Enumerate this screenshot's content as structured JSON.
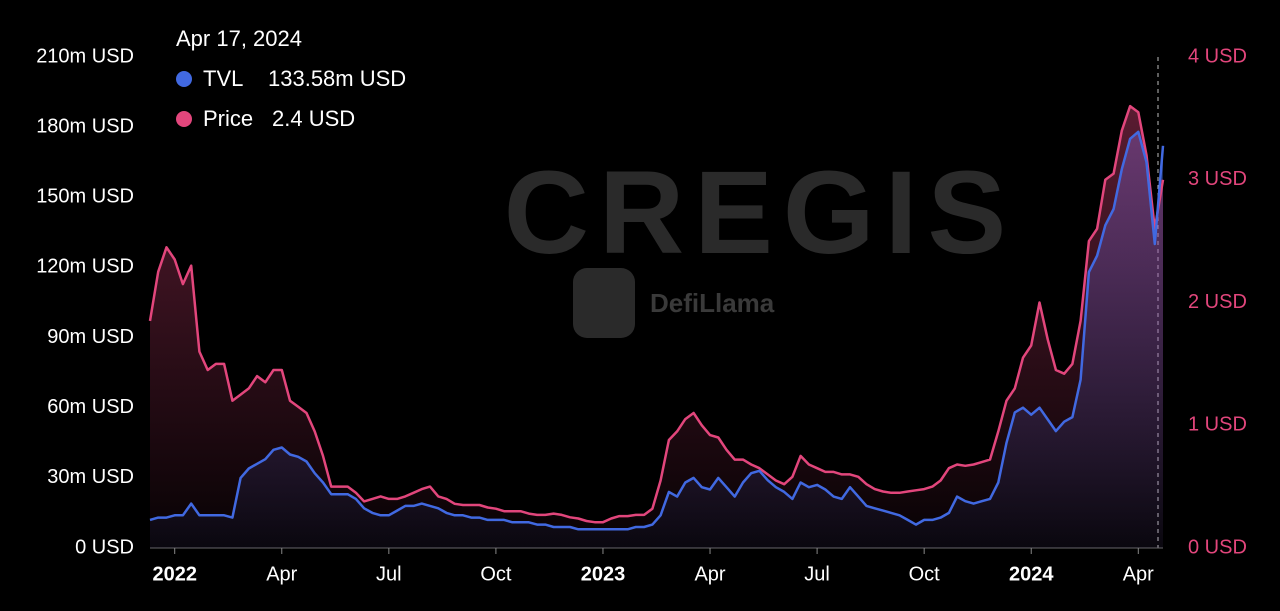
{
  "chart_data": {
    "type": "line",
    "watermarks": [
      "CREGIS",
      "DefiLlama"
    ],
    "tooltip": {
      "date": "Apr 17, 2024",
      "items": [
        {
          "name": "TVL",
          "value": "133.58m USD"
        },
        {
          "name": "Price",
          "value": "2.4 USD"
        }
      ]
    },
    "categories": [
      null,
      null,
      null,
      "2022",
      null,
      null,
      null,
      null,
      null,
      null,
      null,
      null,
      null,
      null,
      null,
      null,
      "Apr",
      null,
      null,
      null,
      null,
      null,
      null,
      null,
      null,
      null,
      null,
      null,
      null,
      "Jul",
      null,
      null,
      null,
      null,
      null,
      null,
      null,
      null,
      null,
      null,
      null,
      null,
      "Oct",
      null,
      null,
      null,
      null,
      null,
      null,
      null,
      null,
      null,
      null,
      null,
      null,
      "2023",
      null,
      null,
      null,
      null,
      null,
      null,
      null,
      null,
      null,
      null,
      null,
      null,
      "Apr",
      null,
      null,
      null,
      null,
      null,
      null,
      null,
      null,
      null,
      null,
      null,
      null,
      "Jul",
      null,
      null,
      null,
      null,
      null,
      null,
      null,
      null,
      null,
      null,
      null,
      null,
      "Oct",
      null,
      null,
      null,
      null,
      null,
      null,
      null,
      null,
      null,
      null,
      null,
      null,
      "2024",
      null,
      null,
      null,
      null,
      null,
      null,
      null,
      null,
      null,
      null,
      null,
      null,
      "Apr",
      null,
      null,
      null
    ],
    "series": [
      {
        "name": "TVL",
        "color": "#4169e1",
        "axis": "y",
        "values": [
          12,
          13,
          13,
          14,
          14,
          19,
          14,
          14,
          14,
          14,
          13,
          30,
          34,
          36,
          38,
          42,
          43,
          40,
          39,
          37,
          32,
          28,
          23,
          23,
          23,
          21,
          17,
          15,
          14,
          14,
          16,
          18,
          18,
          19,
          18,
          17,
          15,
          14,
          14,
          13,
          13,
          12,
          12,
          12,
          11,
          11,
          11,
          10,
          10,
          9,
          9,
          9,
          8,
          8,
          8,
          8,
          8,
          8,
          8,
          9,
          9,
          10,
          14,
          24,
          22,
          28,
          30,
          26,
          25,
          30,
          26,
          22,
          28,
          32,
          33,
          29,
          26,
          24,
          21,
          28,
          26,
          27,
          25,
          22,
          21,
          26,
          22,
          18,
          17,
          16,
          15,
          14,
          12,
          10,
          12,
          12,
          13,
          15,
          22,
          20,
          19,
          20,
          21,
          28,
          45,
          58,
          60,
          57,
          60,
          55,
          50,
          54,
          56,
          72,
          118,
          125,
          138,
          145,
          162,
          175,
          178,
          165,
          130,
          172
        ]
      },
      {
        "name": "Price",
        "color": "#e2467c",
        "axis": "y2",
        "values": [
          1.85,
          2.25,
          2.45,
          2.35,
          2.15,
          2.3,
          1.6,
          1.45,
          1.5,
          1.5,
          1.2,
          1.25,
          1.3,
          1.4,
          1.35,
          1.45,
          1.45,
          1.2,
          1.15,
          1.1,
          0.95,
          0.75,
          0.5,
          0.5,
          0.5,
          0.45,
          0.38,
          0.4,
          0.42,
          0.4,
          0.4,
          0.42,
          0.45,
          0.48,
          0.5,
          0.42,
          0.4,
          0.36,
          0.35,
          0.35,
          0.35,
          0.33,
          0.32,
          0.3,
          0.3,
          0.3,
          0.28,
          0.27,
          0.27,
          0.28,
          0.27,
          0.25,
          0.24,
          0.22,
          0.21,
          0.21,
          0.24,
          0.26,
          0.26,
          0.27,
          0.27,
          0.32,
          0.55,
          0.88,
          0.95,
          1.05,
          1.1,
          1.0,
          0.92,
          0.9,
          0.8,
          0.72,
          0.72,
          0.68,
          0.65,
          0.6,
          0.55,
          0.52,
          0.58,
          0.75,
          0.68,
          0.65,
          0.62,
          0.62,
          0.6,
          0.6,
          0.58,
          0.52,
          0.48,
          0.46,
          0.45,
          0.45,
          0.46,
          0.47,
          0.48,
          0.5,
          0.55,
          0.65,
          0.68,
          0.67,
          0.68,
          0.7,
          0.72,
          0.95,
          1.2,
          1.3,
          1.55,
          1.65,
          2.0,
          1.7,
          1.45,
          1.42,
          1.5,
          1.85,
          2.5,
          2.6,
          3.0,
          3.05,
          3.4,
          3.6,
          3.55,
          3.2,
          2.6,
          3.0
        ]
      }
    ],
    "ylim": [
      0,
      210
    ],
    "yticks": [
      {
        "value": 0,
        "label": "0 USD"
      },
      {
        "value": 30,
        "label": "30m USD"
      },
      {
        "value": 60,
        "label": "60m USD"
      },
      {
        "value": 90,
        "label": "90m USD"
      },
      {
        "value": 120,
        "label": "120m USD"
      },
      {
        "value": 150,
        "label": "150m USD"
      },
      {
        "value": 180,
        "label": "180m USD"
      },
      {
        "value": 210,
        "label": "210m USD"
      }
    ],
    "y2lim": [
      0,
      4
    ],
    "y2ticks": [
      {
        "value": 0,
        "label": "0 USD"
      },
      {
        "value": 1,
        "label": "1 USD"
      },
      {
        "value": 2,
        "label": "2 USD"
      },
      {
        "value": 3,
        "label": "3 USD"
      },
      {
        "value": 4,
        "label": "4 USD"
      }
    ]
  }
}
